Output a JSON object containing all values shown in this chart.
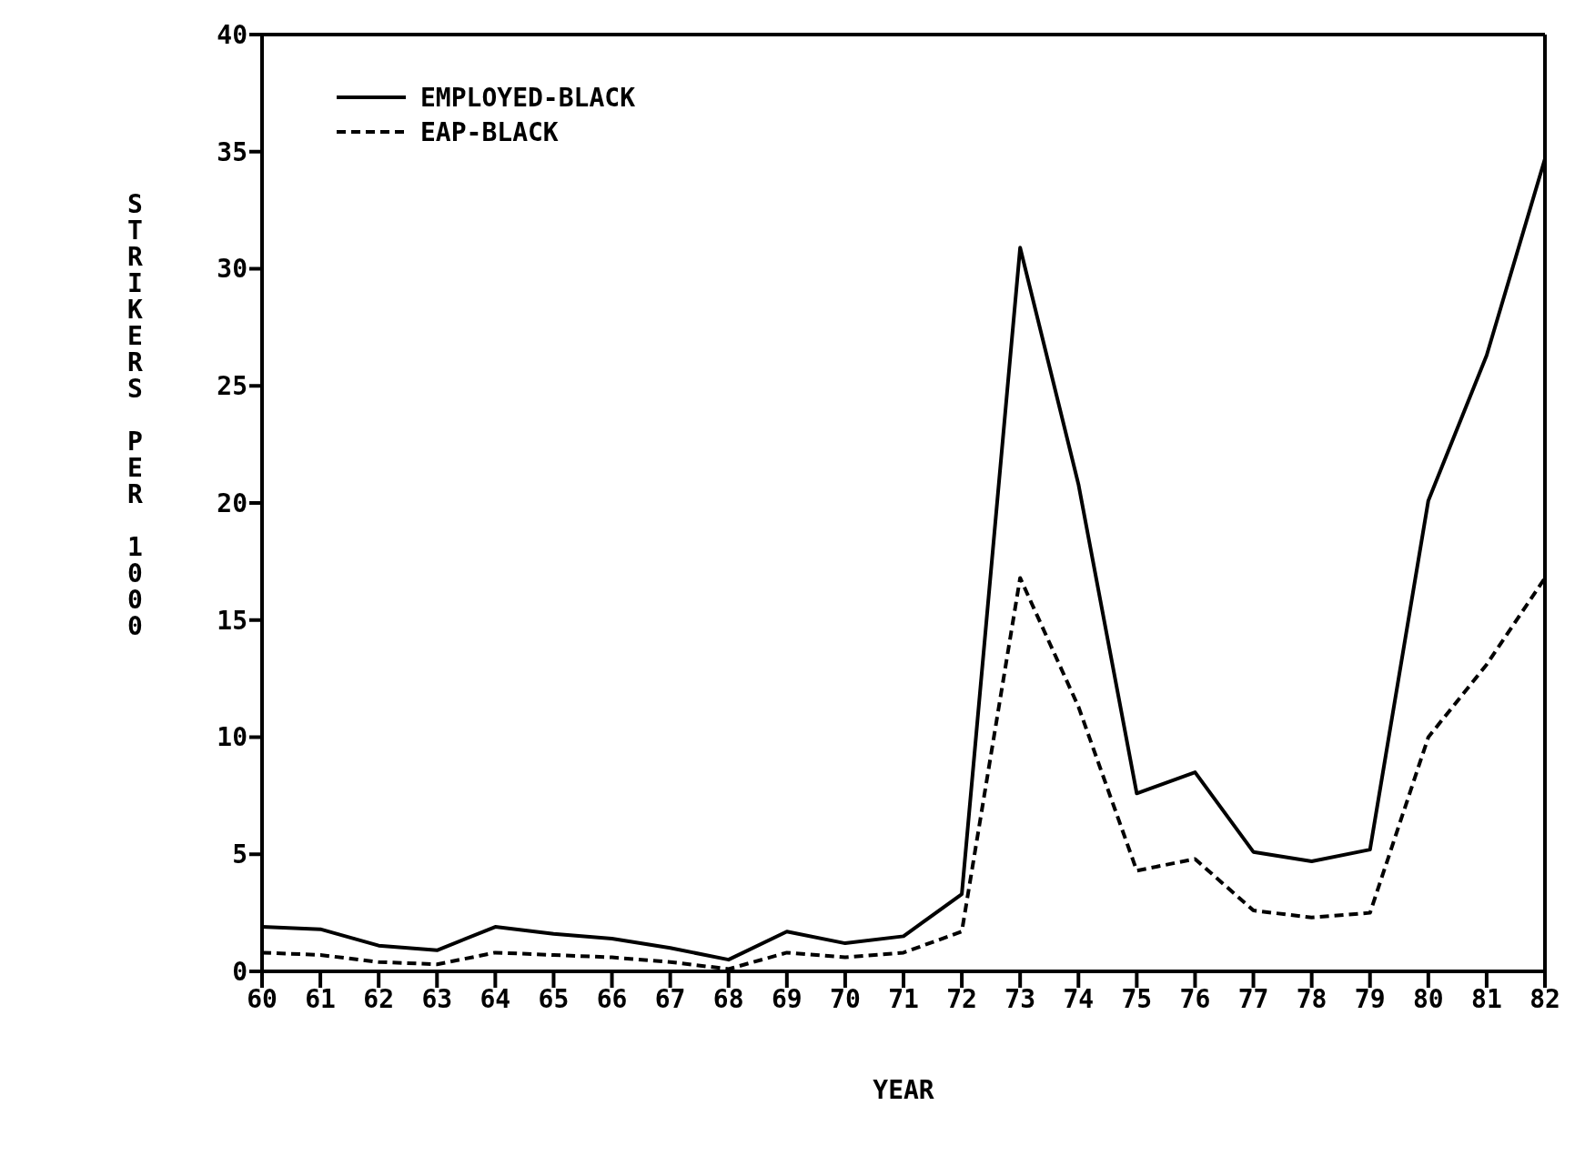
{
  "chart_data": {
    "type": "line",
    "xlabel": "YEAR",
    "ylabel": "STRIKERS PER 1000",
    "x": [
      60,
      61,
      62,
      63,
      64,
      65,
      66,
      67,
      68,
      69,
      70,
      71,
      72,
      73,
      74,
      75,
      76,
      77,
      78,
      79,
      80,
      81,
      82
    ],
    "series": [
      {
        "name": "EMPLOYED-BLACK",
        "color": "#000000",
        "line_style": "solid",
        "values": [
          1.9,
          1.8,
          1.1,
          0.9,
          1.9,
          1.6,
          1.4,
          1.0,
          0.5,
          1.7,
          1.2,
          1.5,
          3.3,
          30.9,
          20.8,
          7.6,
          8.5,
          5.1,
          4.7,
          5.2,
          20.1,
          26.3,
          34.7
        ]
      },
      {
        "name": "EAP-BLACK",
        "color": "#000000",
        "line_style": "dashed",
        "values": [
          0.8,
          0.7,
          0.4,
          0.3,
          0.8,
          0.7,
          0.6,
          0.4,
          0.1,
          0.8,
          0.6,
          0.8,
          1.7,
          16.8,
          11.3,
          4.3,
          4.8,
          2.6,
          2.3,
          2.5,
          10.0,
          13.1,
          16.8
        ]
      }
    ],
    "xlim": [
      60,
      82
    ],
    "xticks": [
      60,
      61,
      62,
      63,
      64,
      65,
      66,
      67,
      68,
      69,
      70,
      71,
      72,
      73,
      74,
      75,
      76,
      77,
      78,
      79,
      80,
      81,
      82
    ],
    "ylim": [
      0,
      40
    ],
    "yticks": [
      0,
      5,
      10,
      15,
      20,
      25,
      30,
      35,
      40
    ],
    "grid": false,
    "legend": "top left",
    "marker": "none"
  }
}
